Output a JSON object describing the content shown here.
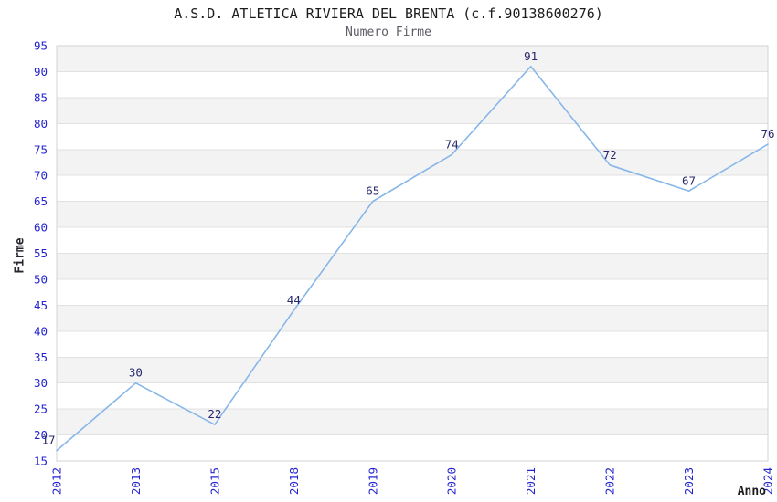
{
  "chart_data": {
    "type": "line",
    "title": "A.S.D. ATLETICA RIVIERA DEL BRENTA (c.f.90138600276)",
    "subtitle": "Numero Firme",
    "xlabel": "Anno",
    "ylabel": "Firme",
    "categories": [
      "2012",
      "2013",
      "2015",
      "2018",
      "2019",
      "2020",
      "2021",
      "2022",
      "2023",
      "2024"
    ],
    "series": [
      {
        "name": "Numero Firme",
        "values": [
          17,
          30,
          22,
          44,
          65,
          74,
          91,
          72,
          67,
          76
        ]
      }
    ],
    "ylim": [
      15,
      95
    ],
    "ytick_step": 5,
    "grid": "horizontal",
    "background_bands": "alternating",
    "legend_position": "none",
    "point_labels_visible": true,
    "colors": {
      "line": "#87b6e9",
      "tick_label": "#2323cf",
      "point_label": "#28286f",
      "band_fill": "#f3f3f3",
      "gridline": "#e1e1e1",
      "plot_border": "#d3d3d3",
      "title": "#1c1c1c",
      "subtitle": "#5c5c64"
    }
  }
}
